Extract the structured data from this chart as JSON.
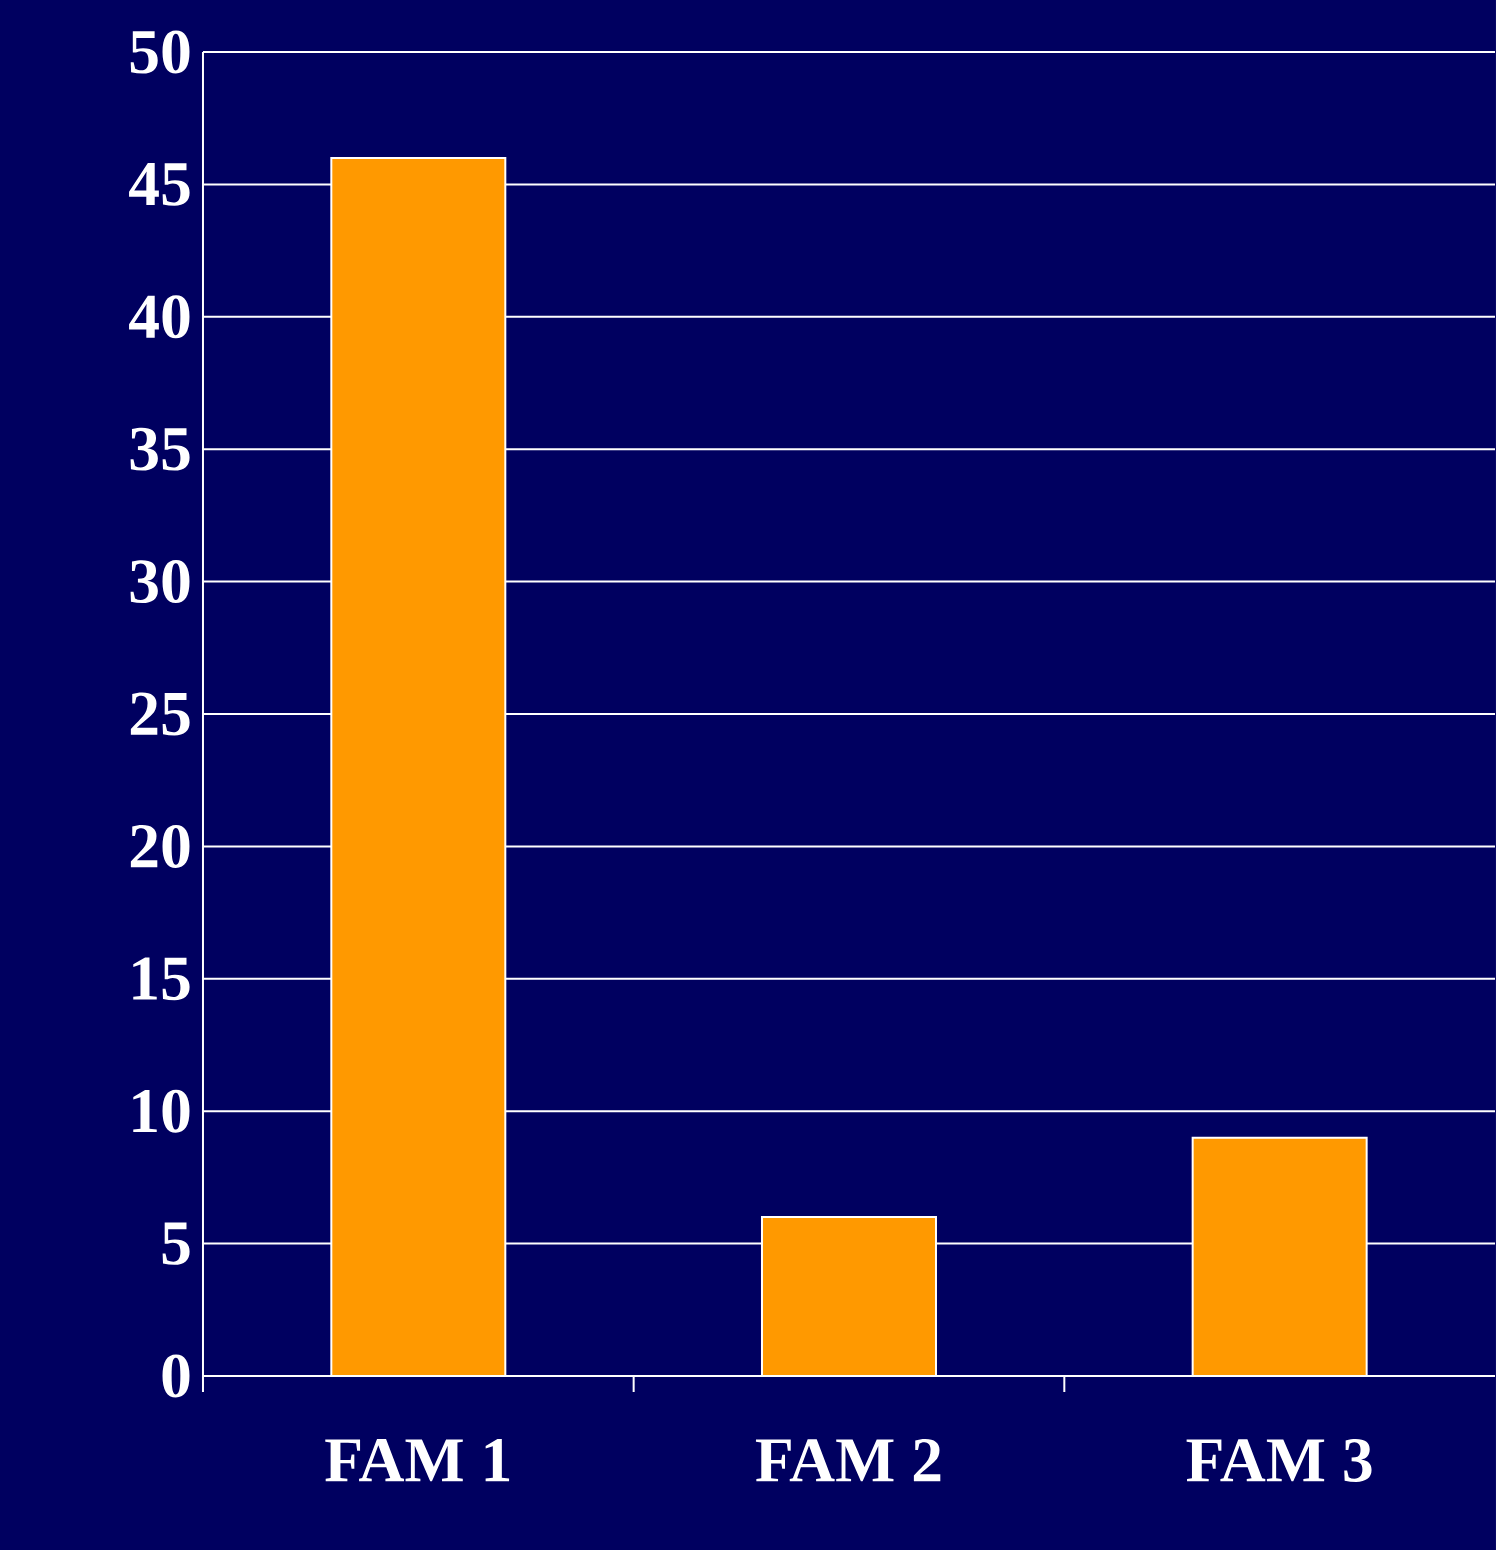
{
  "chart_data": {
    "type": "bar",
    "categories": [
      "FAM 1",
      "FAM 2",
      "FAM 3"
    ],
    "values": [
      46,
      6,
      9
    ],
    "color": "#ff9900",
    "ylim": [
      0,
      50
    ],
    "yticks": [
      0,
      5,
      10,
      15,
      20,
      25,
      30,
      35,
      40,
      45,
      50
    ],
    "grid": "y"
  }
}
